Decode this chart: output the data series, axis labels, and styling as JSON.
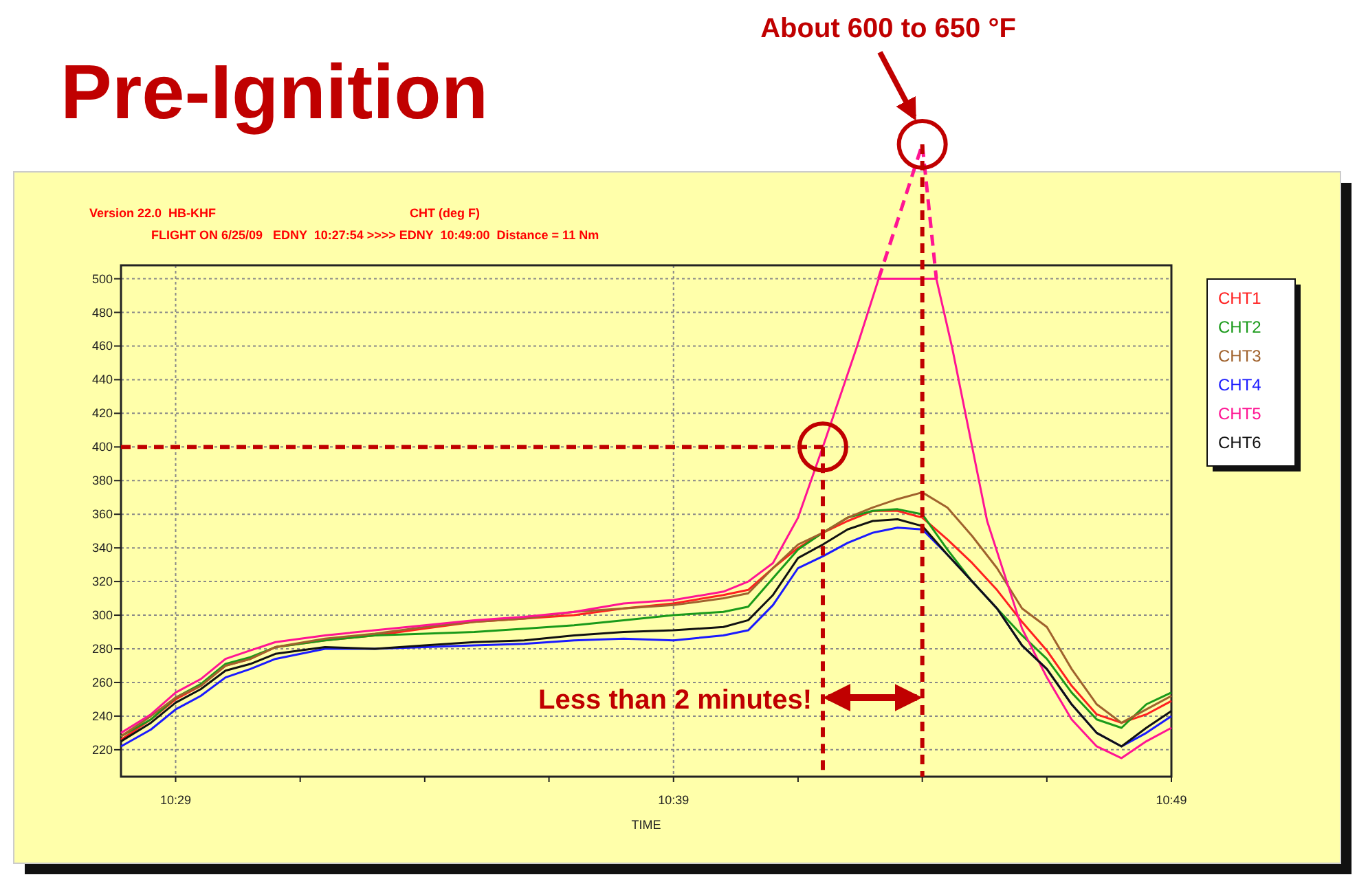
{
  "chart_data": {
    "type": "line",
    "title": "Pre-Ignition",
    "ylabel": "CHT (deg F)",
    "xlabel": "TIME",
    "annotations": [
      "Version 22.0  HB-KHF",
      "FLIGHT ON 6/25/09   EDNY  10:27:54 >>>> EDNY  10:49:00  Distance = 11 Nm",
      "About 600 to 650 °F",
      {
        "text": "Less than 2 minutes!",
        "x": 10.7,
        "y": 251
      }
    ],
    "x": [
      10.465,
      10.475,
      10.4833,
      10.4917,
      10.5,
      10.5083,
      10.5167,
      10.5333,
      10.55,
      10.5667,
      10.5833,
      10.6,
      10.6167,
      10.6333,
      10.65,
      10.6667,
      10.675,
      10.6833,
      10.6917,
      10.7,
      10.7083,
      10.7167,
      10.725,
      10.7333,
      10.7417,
      10.75,
      10.7583,
      10.7667,
      10.775,
      10.7833,
      10.7917,
      10.8,
      10.8083,
      10.8167
    ],
    "series": [
      {
        "name": "CHT1",
        "color": "#ff2020",
        "values": [
          226,
          238,
          250,
          258,
          270,
          274,
          281,
          285,
          288,
          292,
          296,
          298,
          300,
          304,
          307,
          312,
          315,
          328,
          340,
          349,
          356,
          362,
          362,
          358,
          345,
          331,
          315,
          296,
          279,
          258,
          241,
          236,
          241,
          249
        ]
      },
      {
        "name": "CHT2",
        "color": "#1a9a1a",
        "values": [
          228,
          238,
          251,
          259,
          271,
          275,
          281,
          285,
          288,
          289,
          290,
          292,
          294,
          297,
          300,
          302,
          305,
          322,
          339,
          349,
          358,
          362,
          363,
          360,
          339,
          320,
          304,
          288,
          274,
          254,
          238,
          233,
          247,
          254
        ]
      },
      {
        "name": "CHT3",
        "color": "#a0622d",
        "values": [
          228,
          240,
          251,
          258,
          270,
          274,
          281,
          286,
          289,
          293,
          296,
          298,
          302,
          304,
          306,
          310,
          313,
          328,
          342,
          349,
          358,
          364,
          369,
          373,
          364,
          347,
          328,
          304,
          293,
          268,
          247,
          236,
          244,
          252
        ]
      },
      {
        "name": "CHT4",
        "color": "#1a1aff",
        "values": [
          222,
          232,
          244,
          252,
          263,
          268,
          274,
          280,
          280,
          281,
          282,
          283,
          285,
          286,
          285,
          288,
          291,
          306,
          328,
          335,
          343,
          349,
          352,
          351,
          336,
          320,
          304,
          282,
          268,
          247,
          230,
          222,
          230,
          240
        ]
      },
      {
        "name": "CHT5",
        "color": "#ff1493",
        "x": [
          10.465,
          10.475,
          10.4833,
          10.4917,
          10.5,
          10.5083,
          10.5167,
          10.5333,
          10.55,
          10.5667,
          10.5833,
          10.6,
          10.6167,
          10.6333,
          10.65,
          10.6667,
          10.675,
          10.6833,
          10.6917,
          10.7,
          10.7113,
          10.7187,
          10.738,
          10.7433,
          10.755,
          10.7667,
          10.775,
          10.7833,
          10.7917,
          10.8,
          10.8083,
          10.8167
        ],
        "values": [
          230,
          241,
          254,
          262,
          274,
          279,
          284,
          288,
          291,
          294,
          297,
          299,
          302,
          307,
          309,
          314,
          320,
          331,
          358,
          400,
          459,
          500,
          500,
          459,
          356,
          292,
          263,
          238,
          222,
          215,
          225,
          233
        ]
      },
      {
        "name": "CHT6",
        "color": "#111111",
        "values": [
          225,
          236,
          248,
          256,
          267,
          271,
          277,
          281,
          280,
          282,
          284,
          285,
          288,
          290,
          291,
          293,
          297,
          312,
          334,
          342,
          351,
          356,
          357,
          353,
          336,
          320,
          304,
          282,
          268,
          247,
          230,
          222,
          233,
          243
        ]
      }
    ],
    "xlim": [
      10.465,
      10.8167
    ],
    "ylim": [
      204,
      508
    ],
    "xticks": [
      {
        "value": 10.4833,
        "label": "10:29"
      },
      {
        "value": 10.525,
        "label": null
      },
      {
        "value": 10.5667,
        "label": null
      },
      {
        "value": 10.6083,
        "label": null
      },
      {
        "value": 10.65,
        "label": "10:39"
      },
      {
        "value": 10.6917,
        "label": null
      },
      {
        "value": 10.7333,
        "label": null
      },
      {
        "value": 10.775,
        "label": null
      },
      {
        "value": 10.8167,
        "label": "10:49"
      }
    ],
    "yticks": [
      220,
      240,
      260,
      280,
      300,
      320,
      340,
      360,
      380,
      400,
      420,
      440,
      460,
      480,
      500
    ],
    "grid": true,
    "legend": "right",
    "ref_lines": [
      {
        "axis": "y",
        "value": 400,
        "color": "#c00000",
        "line_style": "dashed"
      },
      {
        "axis": "x",
        "value": 10.7,
        "color": "#c00000",
        "line_style": "dashed"
      },
      {
        "axis": "x",
        "value": 10.7333,
        "color": "#c00000",
        "line_style": "dashed"
      }
    ]
  }
}
